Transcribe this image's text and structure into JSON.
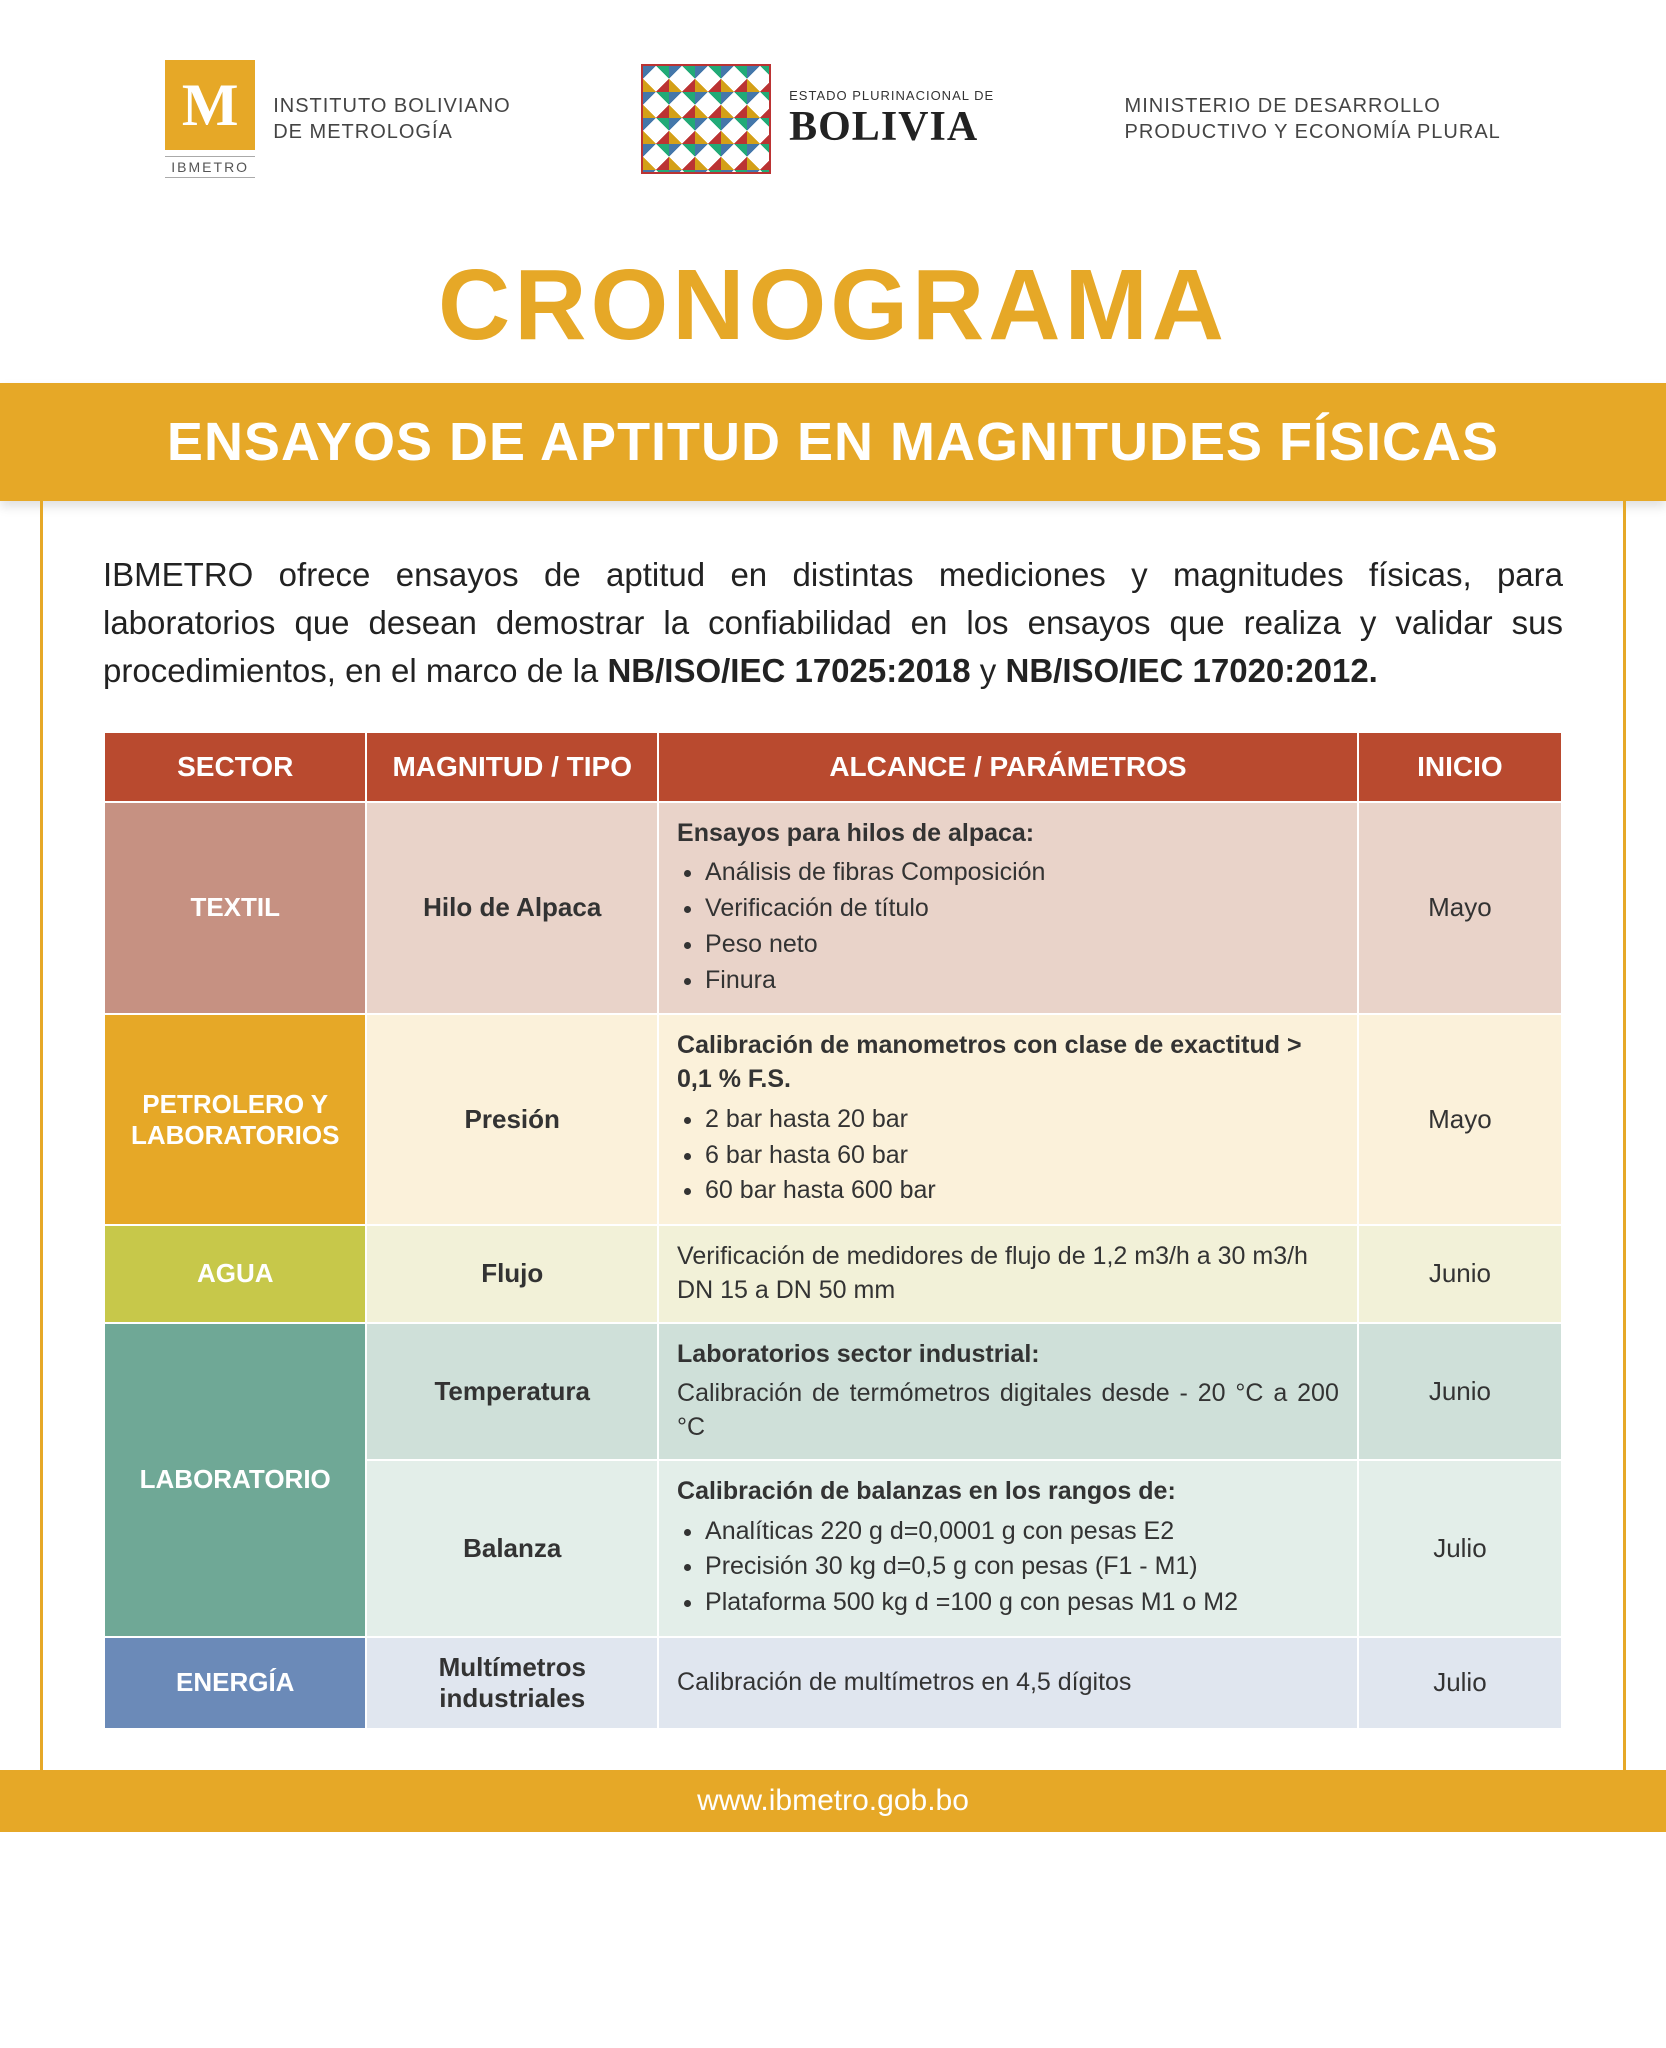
{
  "logos": {
    "ibmetro": {
      "label": "IBMETRO",
      "text_line1": "INSTITUTO BOLIVIANO",
      "text_line2": "DE METROLOGÍA"
    },
    "bolivia": {
      "small": "ESTADO PLURINACIONAL DE",
      "big": "BOLIVIA"
    },
    "ministerio": {
      "line1": "MINISTERIO DE DESARROLLO",
      "line2": "PRODUCTIVO Y ECONOMÍA PLURAL"
    }
  },
  "title": "CRONOGRAMA",
  "banner": "ENSAYOS DE APTITUD EN MAGNITUDES FÍSICAS",
  "intro_plain": "IBMETRO ofrece ensayos de aptitud en distintas mediciones y magnitudes físicas, para laboratorios que desean demostrar la confiabilidad en los ensayos que realiza y validar sus procedimientos, en el marco de la ",
  "intro_bold1": "NB/ISO/IEC 17025:2018",
  "intro_and": " y ",
  "intro_bold2": "NB/ISO/IEC 17020:2012.",
  "table": {
    "headers": [
      "SECTOR",
      "MAGNITUD / TIPO",
      "ALCANCE / PARÁMETROS",
      "INICIO"
    ],
    "col_widths": [
      "18%",
      "20%",
      "48%",
      "14%"
    ],
    "header_bg": "#b94a2f",
    "rows": [
      {
        "sector": "TEXTIL",
        "sector_bg": "#c69182",
        "row_bg": "#e9d3c9",
        "magnitud": "Hilo de Alpaca",
        "alcance_lead": "Ensayos para hilos de alpaca:",
        "alcance_items": [
          "Análisis de fibras Composición",
          "Verificación de título",
          "Peso neto",
          "Finura"
        ],
        "inicio": "Mayo",
        "rowspan": 1
      },
      {
        "sector": "PETROLERO Y LABORATORIOS",
        "sector_bg": "#e6a827",
        "row_bg": "#fbf1da",
        "magnitud": "Presión",
        "alcance_lead": "Calibración de manometros con clase de exactitud > 0,1 % F.S.",
        "alcance_items": [
          "2 bar hasta 20 bar",
          "6 bar hasta 60 bar",
          "60 bar hasta 600 bar"
        ],
        "inicio": "Mayo",
        "rowspan": 1
      },
      {
        "sector": "AGUA",
        "sector_bg": "#c7c84a",
        "row_bg": "#f2f1d8",
        "magnitud": "Flujo",
        "alcance_text": "Verificación de medidores de flujo de 1,2 m3/h a 30 m3/h DN 15 a DN 50 mm",
        "inicio": "Junio",
        "rowspan": 1
      },
      {
        "sector": "LABORATORIO",
        "sector_bg": "#6fa896",
        "row_bg_a": "#cfe0d9",
        "row_bg_b": "#e3eee9",
        "sub": [
          {
            "magnitud": "Temperatura",
            "alcance_lead": "Laboratorios sector industrial:",
            "alcance_text": "Calibración de termómetros digitales desde - 20 °C a 200 °C",
            "alcance_justify": true,
            "inicio": "Junio"
          },
          {
            "magnitud": "Balanza",
            "alcance_lead": "Calibración de balanzas en los rangos de:",
            "alcance_items": [
              "Analíticas 220 g d=0,0001 g con pesas E2",
              "Precisión 30 kg d=0,5 g con pesas (F1 - M1)",
              "Plataforma 500 kg d =100 g con pesas M1 o M2"
            ],
            "inicio": "Julio"
          }
        ],
        "rowspan": 2
      },
      {
        "sector": "ENERGÍA",
        "sector_bg": "#6b8ab8",
        "row_bg": "#e0e6ef",
        "magnitud": "Multímetros industriales",
        "alcance_text": "Calibración de multímetros en 4,5 dígitos",
        "inicio": "Julio",
        "rowspan": 1
      }
    ]
  },
  "footer": "www.ibmetro.gob.bo",
  "colors": {
    "accent": "#e6a827",
    "header_row": "#b94a2f"
  }
}
